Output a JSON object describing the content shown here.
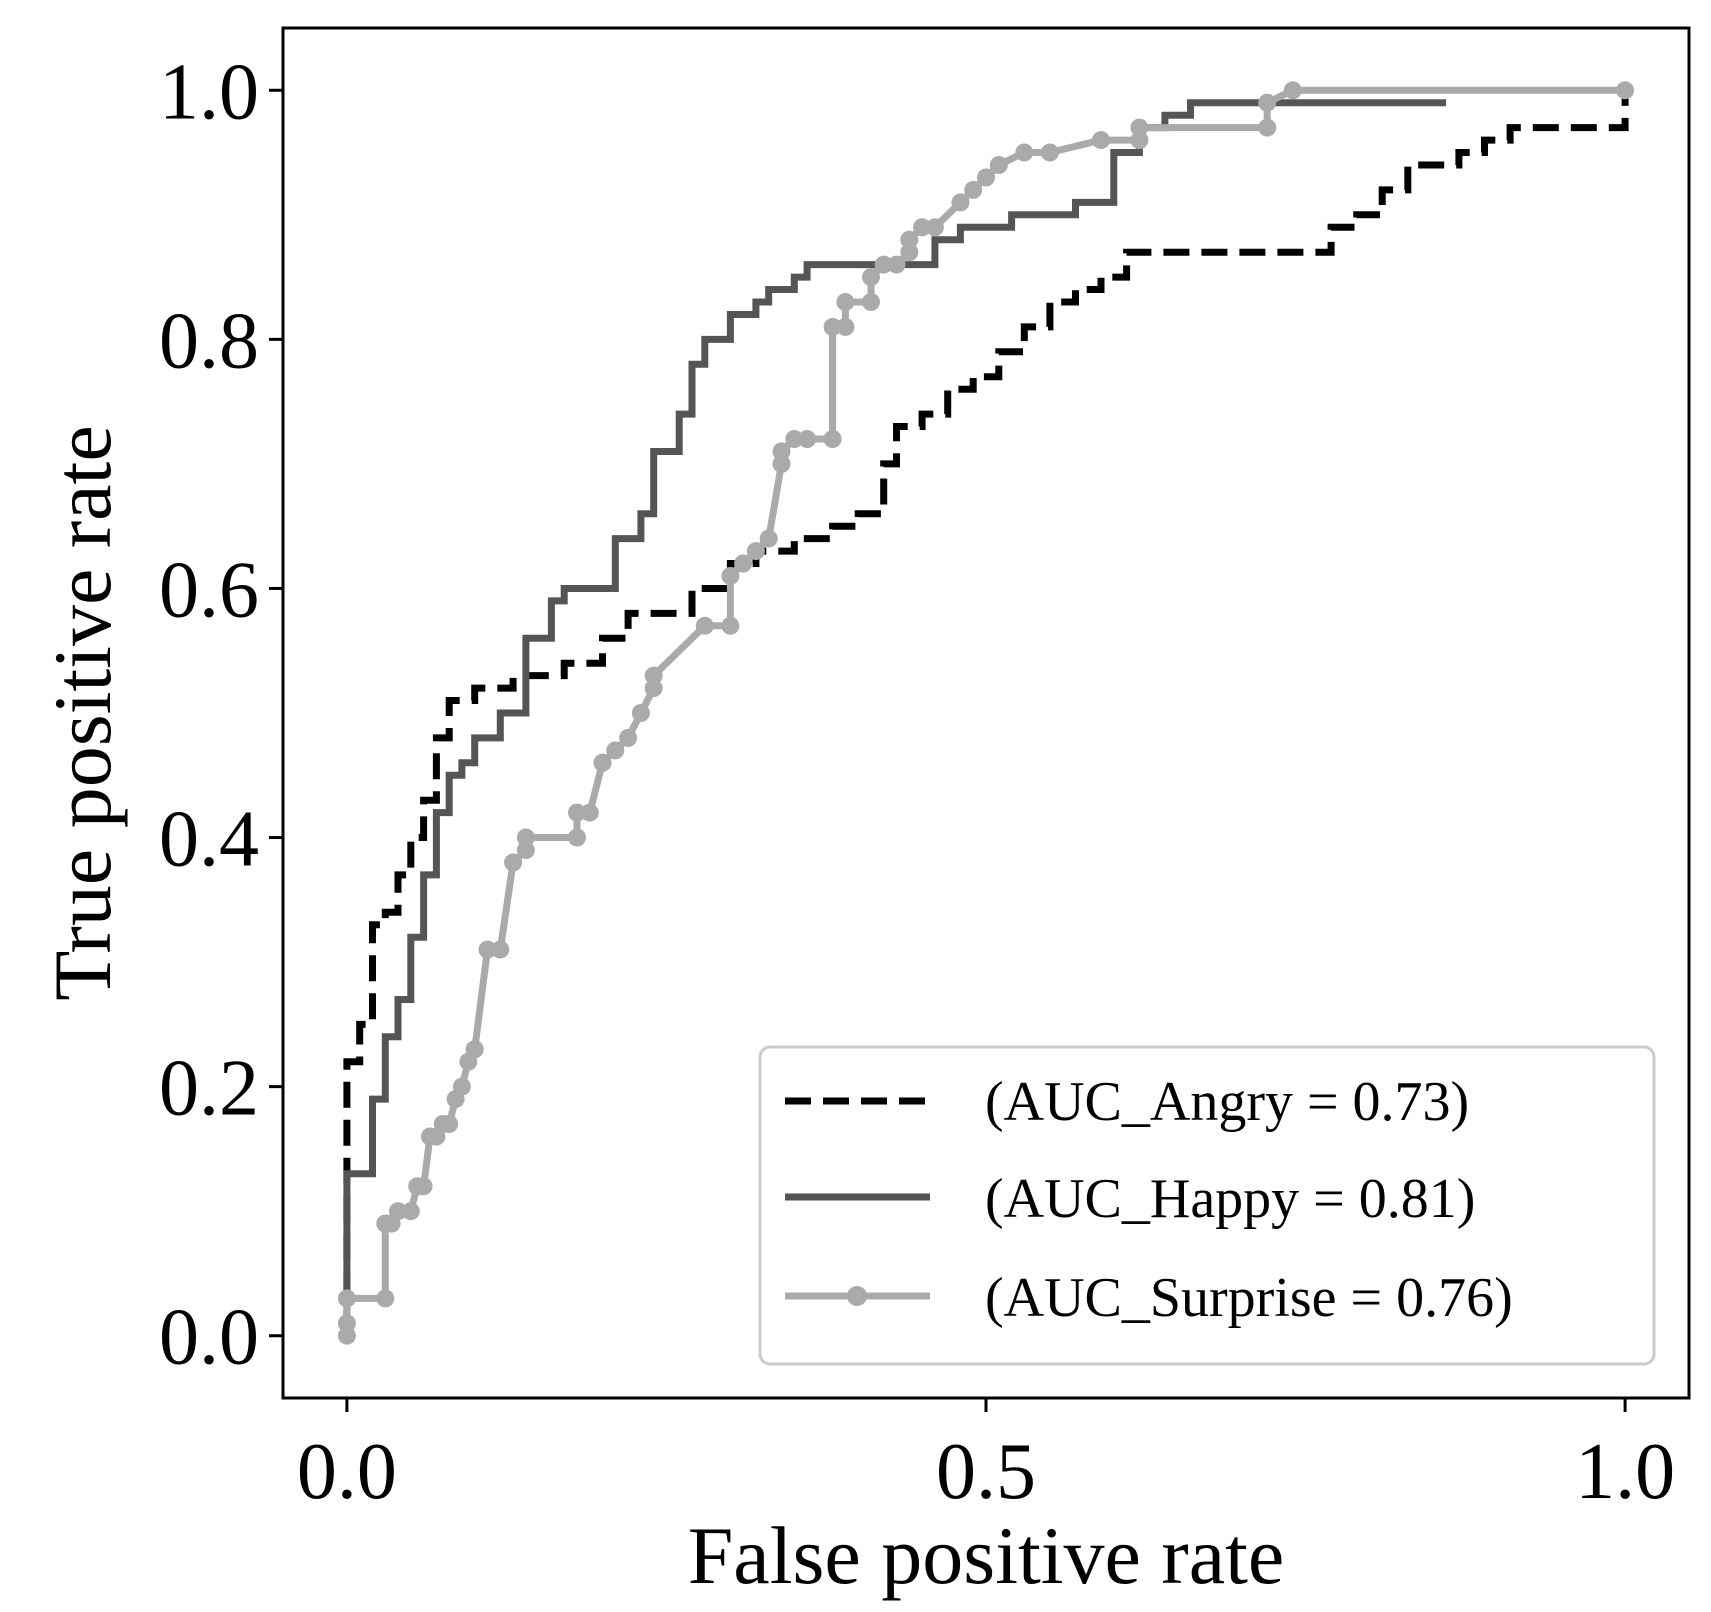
{
  "chart_data": {
    "type": "line",
    "title": "",
    "xlabel": "False positive rate",
    "ylabel": "True positive rate",
    "xlim": [
      -0.05,
      1.05
    ],
    "ylim": [
      -0.05,
      1.05
    ],
    "xticks": [
      0.0,
      0.5,
      1.0
    ],
    "xtick_labels": [
      "0.0",
      "0.5",
      "1.0"
    ],
    "yticks": [
      0.0,
      0.2,
      0.4,
      0.6,
      0.8,
      1.0
    ],
    "ytick_labels": [
      "0.0",
      "0.2",
      "0.4",
      "0.6",
      "0.8",
      "1.0"
    ],
    "grid": false,
    "legend_position": "bottom-right",
    "series": [
      {
        "name": "(AUC_Angry = 0.73)",
        "color": "#000000",
        "line_style": "dashed",
        "marker": "none",
        "x": [
          0.0,
          0.0,
          0.01,
          0.01,
          0.02,
          0.02,
          0.03,
          0.03,
          0.04,
          0.04,
          0.05,
          0.05,
          0.06,
          0.06,
          0.07,
          0.07,
          0.08,
          0.08,
          0.1,
          0.1,
          0.13,
          0.13,
          0.17,
          0.17,
          0.2,
          0.2,
          0.22,
          0.22,
          0.27,
          0.27,
          0.3,
          0.3,
          0.32,
          0.32,
          0.35,
          0.35,
          0.38,
          0.38,
          0.4,
          0.4,
          0.42,
          0.42,
          0.43,
          0.43,
          0.45,
          0.45,
          0.47,
          0.47,
          0.49,
          0.49,
          0.51,
          0.51,
          0.53,
          0.53,
          0.55,
          0.55,
          0.57,
          0.57,
          0.59,
          0.59,
          0.61,
          0.61,
          0.63,
          0.63,
          0.77,
          0.77,
          0.79,
          0.79,
          0.81,
          0.81,
          0.83,
          0.83,
          0.87,
          0.87,
          0.89,
          0.89,
          0.91,
          0.91,
          1.0,
          1.0
        ],
        "y": [
          0.0,
          0.22,
          0.22,
          0.25,
          0.25,
          0.33,
          0.33,
          0.34,
          0.34,
          0.37,
          0.37,
          0.4,
          0.4,
          0.43,
          0.43,
          0.48,
          0.48,
          0.51,
          0.51,
          0.52,
          0.52,
          0.53,
          0.53,
          0.54,
          0.54,
          0.56,
          0.56,
          0.58,
          0.58,
          0.6,
          0.6,
          0.62,
          0.62,
          0.63,
          0.63,
          0.64,
          0.64,
          0.65,
          0.65,
          0.66,
          0.66,
          0.7,
          0.7,
          0.73,
          0.73,
          0.74,
          0.74,
          0.76,
          0.76,
          0.77,
          0.77,
          0.79,
          0.79,
          0.81,
          0.81,
          0.83,
          0.83,
          0.84,
          0.84,
          0.85,
          0.85,
          0.87,
          0.87,
          0.87,
          0.87,
          0.89,
          0.89,
          0.9,
          0.9,
          0.92,
          0.92,
          0.94,
          0.94,
          0.95,
          0.95,
          0.96,
          0.96,
          0.97,
          0.97,
          1.0
        ]
      },
      {
        "name": "(AUC_Happy = 0.81)",
        "color": "#555555",
        "line_style": "solid",
        "marker": "none",
        "x": [
          0.0,
          0.0,
          0.02,
          0.02,
          0.03,
          0.03,
          0.04,
          0.04,
          0.05,
          0.05,
          0.06,
          0.06,
          0.07,
          0.07,
          0.08,
          0.08,
          0.09,
          0.09,
          0.1,
          0.1,
          0.12,
          0.12,
          0.14,
          0.14,
          0.16,
          0.16,
          0.17,
          0.17,
          0.21,
          0.21,
          0.23,
          0.23,
          0.24,
          0.24,
          0.26,
          0.26,
          0.27,
          0.27,
          0.28,
          0.28,
          0.3,
          0.3,
          0.32,
          0.32,
          0.33,
          0.33,
          0.35,
          0.35,
          0.36,
          0.36,
          0.38,
          0.38,
          0.46,
          0.46,
          0.48,
          0.48,
          0.52,
          0.52,
          0.57,
          0.57,
          0.6,
          0.6,
          0.62,
          0.62,
          0.64,
          0.64,
          0.66,
          0.66,
          0.71,
          0.71,
          0.86
        ],
        "y": [
          0.0,
          0.13,
          0.13,
          0.19,
          0.19,
          0.24,
          0.24,
          0.27,
          0.27,
          0.32,
          0.32,
          0.37,
          0.37,
          0.42,
          0.42,
          0.45,
          0.45,
          0.46,
          0.46,
          0.48,
          0.48,
          0.5,
          0.5,
          0.56,
          0.56,
          0.59,
          0.59,
          0.6,
          0.6,
          0.64,
          0.64,
          0.66,
          0.66,
          0.71,
          0.71,
          0.74,
          0.74,
          0.78,
          0.78,
          0.8,
          0.8,
          0.82,
          0.82,
          0.83,
          0.83,
          0.84,
          0.84,
          0.85,
          0.85,
          0.86,
          0.86,
          0.86,
          0.86,
          0.88,
          0.88,
          0.89,
          0.89,
          0.9,
          0.9,
          0.91,
          0.91,
          0.95,
          0.95,
          0.97,
          0.97,
          0.98,
          0.98,
          0.99,
          0.99,
          0.99,
          0.99
        ]
      },
      {
        "name": "(AUC_Surprise = 0.76)",
        "color": "#aaaaaa",
        "line_style": "solid",
        "marker": "circle",
        "x": [
          0.0,
          0.0,
          0.0,
          0.03,
          0.03,
          0.035,
          0.04,
          0.05,
          0.055,
          0.06,
          0.065,
          0.07,
          0.075,
          0.08,
          0.085,
          0.09,
          0.095,
          0.1,
          0.1,
          0.11,
          0.12,
          0.13,
          0.14,
          0.14,
          0.18,
          0.18,
          0.19,
          0.2,
          0.2,
          0.21,
          0.22,
          0.23,
          0.24,
          0.24,
          0.28,
          0.3,
          0.3,
          0.31,
          0.32,
          0.33,
          0.34,
          0.34,
          0.35,
          0.36,
          0.38,
          0.38,
          0.39,
          0.39,
          0.41,
          0.41,
          0.42,
          0.43,
          0.44,
          0.44,
          0.45,
          0.46,
          0.48,
          0.49,
          0.5,
          0.51,
          0.53,
          0.55,
          0.59,
          0.62,
          0.62,
          0.72,
          0.72,
          0.74,
          1.0
        ],
        "y": [
          0.0,
          0.01,
          0.03,
          0.03,
          0.09,
          0.09,
          0.1,
          0.1,
          0.12,
          0.12,
          0.16,
          0.16,
          0.17,
          0.17,
          0.19,
          0.2,
          0.22,
          0.23,
          0.23,
          0.31,
          0.31,
          0.38,
          0.39,
          0.4,
          0.4,
          0.42,
          0.42,
          0.46,
          0.46,
          0.47,
          0.48,
          0.5,
          0.52,
          0.53,
          0.57,
          0.57,
          0.61,
          0.62,
          0.63,
          0.64,
          0.7,
          0.71,
          0.72,
          0.72,
          0.72,
          0.81,
          0.81,
          0.83,
          0.83,
          0.85,
          0.86,
          0.86,
          0.87,
          0.88,
          0.89,
          0.89,
          0.91,
          0.92,
          0.93,
          0.94,
          0.95,
          0.95,
          0.96,
          0.96,
          0.97,
          0.97,
          0.99,
          1.0,
          1.0
        ]
      }
    ]
  }
}
